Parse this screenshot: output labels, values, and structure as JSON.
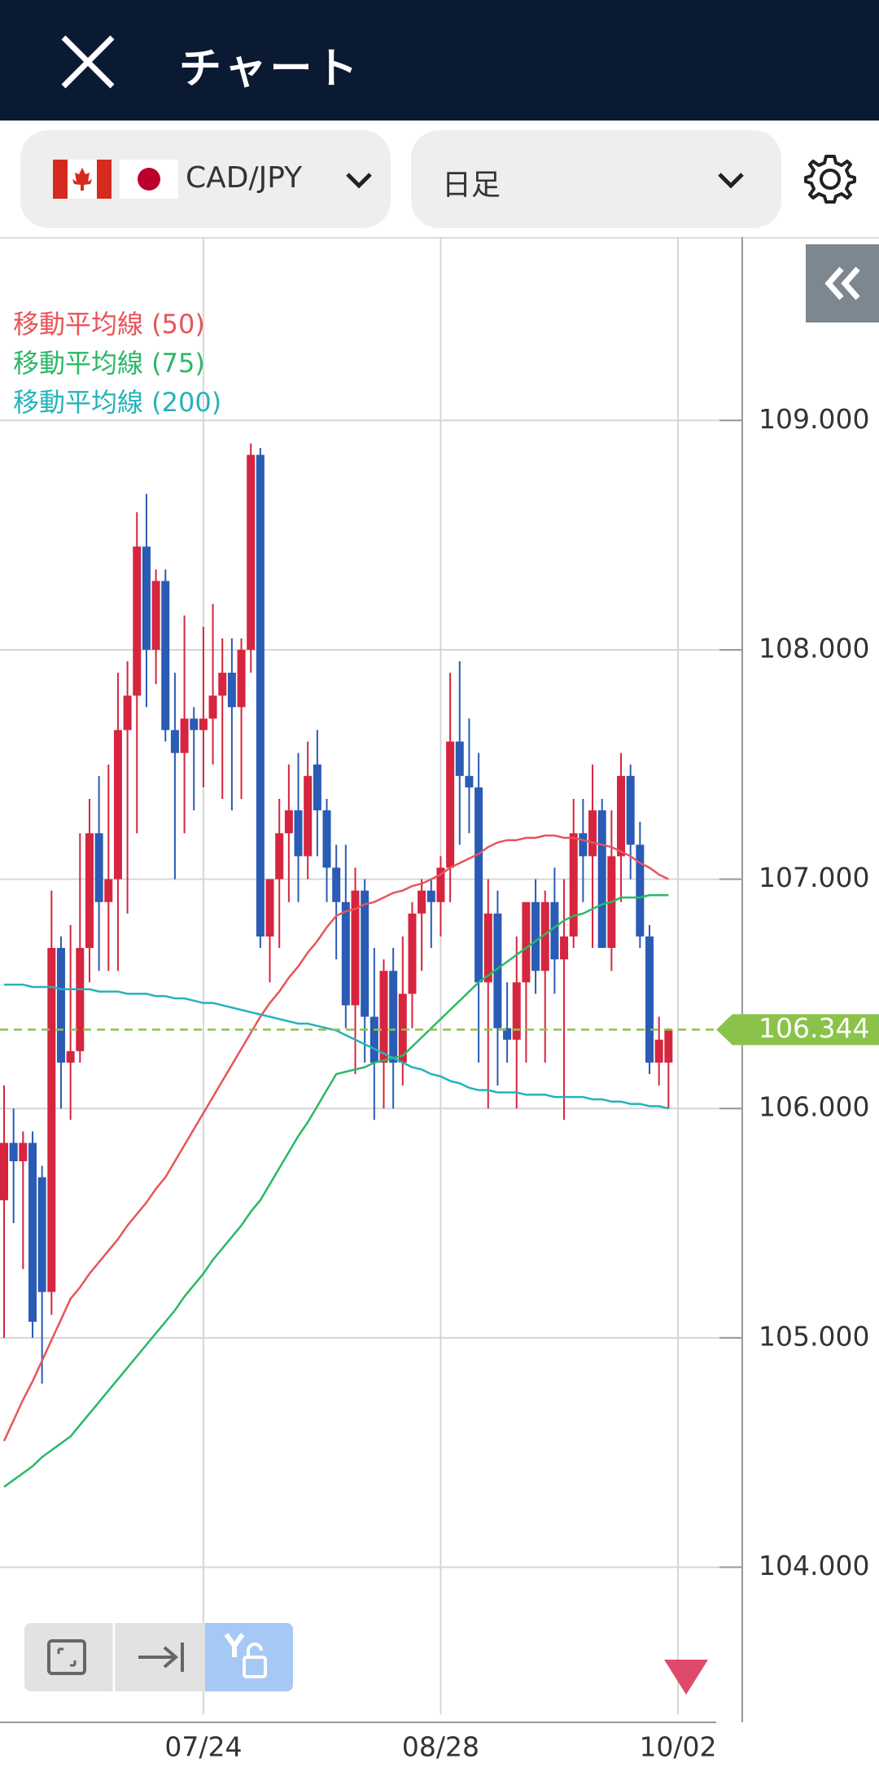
{
  "header": {
    "title": "チャート"
  },
  "controls": {
    "pair": "CAD/JPY",
    "timeframe": "日足"
  },
  "chart_data": {
    "type": "candlestick",
    "categories": [
      null,
      null,
      null,
      null,
      null,
      null,
      null,
      null,
      null,
      null,
      null,
      null,
      null,
      null,
      null,
      null,
      null,
      null,
      null,
      null,
      null,
      "07/24",
      null,
      null,
      null,
      null,
      null,
      null,
      null,
      null,
      null,
      null,
      null,
      null,
      null,
      null,
      null,
      null,
      null,
      null,
      null,
      null,
      null,
      null,
      null,
      null,
      "08/28",
      null,
      null,
      null,
      null,
      null,
      null,
      null,
      null,
      null,
      null,
      null,
      null,
      null,
      null,
      null,
      null,
      null,
      null,
      null,
      null,
      null,
      null,
      null,
      null,
      "10/02"
    ],
    "up_color": "#d6253e",
    "down_color": "#2a5bb5",
    "ohlc": [
      [
        105.6,
        106.1,
        105.0,
        105.85
      ],
      [
        105.85,
        106.0,
        105.5,
        105.77
      ],
      [
        105.77,
        105.9,
        105.3,
        105.85
      ],
      [
        105.85,
        105.9,
        105.0,
        105.07
      ],
      [
        105.7,
        105.75,
        104.8,
        105.2
      ],
      [
        105.2,
        106.95,
        105.1,
        106.7
      ],
      [
        106.7,
        106.75,
        106.0,
        106.2
      ],
      [
        106.2,
        106.8,
        105.95,
        106.25
      ],
      [
        106.25,
        107.2,
        106.2,
        106.7
      ],
      [
        106.7,
        107.35,
        106.55,
        107.2
      ],
      [
        107.2,
        107.45,
        106.6,
        106.9
      ],
      [
        106.9,
        107.5,
        106.6,
        107.0
      ],
      [
        107.0,
        107.9,
        106.6,
        107.65
      ],
      [
        107.65,
        107.95,
        106.85,
        107.8
      ],
      [
        107.8,
        108.6,
        107.2,
        108.45
      ],
      [
        108.45,
        108.68,
        107.75,
        108.0
      ],
      [
        108.0,
        108.35,
        107.85,
        108.3
      ],
      [
        108.3,
        108.35,
        107.6,
        107.65
      ],
      [
        107.65,
        107.9,
        107.0,
        107.55
      ],
      [
        107.55,
        108.15,
        107.2,
        107.7
      ],
      [
        107.7,
        107.75,
        107.3,
        107.65
      ],
      [
        107.65,
        108.1,
        107.4,
        107.7
      ],
      [
        107.7,
        108.2,
        107.5,
        107.8
      ],
      [
        107.8,
        108.05,
        107.35,
        107.9
      ],
      [
        107.9,
        108.05,
        107.3,
        107.75
      ],
      [
        107.75,
        108.05,
        107.35,
        108.0
      ],
      [
        108.0,
        108.9,
        107.9,
        108.85
      ],
      [
        108.85,
        108.88,
        106.7,
        106.75
      ],
      [
        106.75,
        107.0,
        106.55,
        107.0
      ],
      [
        107.0,
        107.35,
        106.7,
        107.2
      ],
      [
        107.2,
        107.5,
        106.9,
        107.3
      ],
      [
        107.3,
        107.55,
        106.9,
        107.1
      ],
      [
        107.1,
        107.6,
        107.0,
        107.45
      ],
      [
        107.5,
        107.65,
        107.1,
        107.3
      ],
      [
        107.3,
        107.35,
        106.9,
        107.05
      ],
      [
        107.05,
        107.15,
        106.65,
        106.9
      ],
      [
        106.9,
        107.15,
        106.35,
        106.45
      ],
      [
        106.45,
        107.05,
        106.15,
        106.95
      ],
      [
        106.95,
        107.0,
        106.2,
        106.4
      ],
      [
        106.4,
        106.7,
        105.95,
        106.2
      ],
      [
        106.2,
        106.65,
        106.0,
        106.6
      ],
      [
        106.6,
        106.7,
        106.0,
        106.2
      ],
      [
        106.2,
        106.75,
        106.1,
        106.5
      ],
      [
        106.5,
        106.9,
        106.35,
        106.85
      ],
      [
        106.85,
        107.0,
        106.6,
        106.95
      ],
      [
        106.95,
        107.0,
        106.7,
        106.9
      ],
      [
        106.9,
        107.1,
        106.75,
        107.05
      ],
      [
        107.05,
        107.9,
        106.9,
        107.6
      ],
      [
        107.6,
        107.95,
        107.15,
        107.45
      ],
      [
        107.45,
        107.7,
        107.2,
        107.4
      ],
      [
        107.4,
        107.55,
        106.2,
        106.55
      ],
      [
        106.55,
        107.0,
        106.0,
        106.85
      ],
      [
        106.85,
        106.95,
        106.1,
        106.35
      ],
      [
        106.35,
        106.55,
        106.2,
        106.3
      ],
      [
        106.3,
        106.75,
        106.0,
        106.55
      ],
      [
        106.55,
        106.8,
        106.2,
        106.9
      ],
      [
        106.9,
        107.0,
        106.5,
        106.6
      ],
      [
        106.6,
        106.95,
        106.2,
        106.9
      ],
      [
        106.9,
        107.05,
        106.5,
        106.65
      ],
      [
        106.65,
        107.0,
        105.95,
        106.75
      ],
      [
        106.75,
        107.35,
        106.7,
        107.2
      ],
      [
        107.2,
        107.35,
        106.9,
        107.1
      ],
      [
        107.1,
        107.5,
        106.7,
        107.3
      ],
      [
        107.3,
        107.35,
        106.7,
        106.7
      ],
      [
        106.7,
        107.3,
        106.6,
        107.1
      ],
      [
        107.1,
        107.55,
        106.9,
        107.45
      ],
      [
        107.45,
        107.5,
        107.0,
        107.15
      ],
      [
        107.15,
        107.25,
        106.7,
        106.75
      ],
      [
        106.75,
        106.8,
        106.15,
        106.2
      ],
      [
        106.2,
        106.4,
        106.1,
        106.3
      ],
      [
        106.2,
        106.35,
        106.0,
        106.344
      ],
      null
    ],
    "series": [
      {
        "name": "移動平均線 (50)",
        "color": "#e8545a",
        "values": [
          104.55,
          104.64,
          104.73,
          104.81,
          104.9,
          104.99,
          105.08,
          105.17,
          105.22,
          105.28,
          105.33,
          105.38,
          105.43,
          105.49,
          105.54,
          105.59,
          105.65,
          105.7,
          105.77,
          105.84,
          105.91,
          105.98,
          106.05,
          106.12,
          106.19,
          106.26,
          106.33,
          106.4,
          106.46,
          106.51,
          106.57,
          106.62,
          106.68,
          106.73,
          106.79,
          106.84,
          106.86,
          106.87,
          106.89,
          106.9,
          106.92,
          106.94,
          106.95,
          106.97,
          106.98,
          107.0,
          107.02,
          107.05,
          107.07,
          107.09,
          107.11,
          107.14,
          107.16,
          107.17,
          107.17,
          107.18,
          107.18,
          107.19,
          107.19,
          107.18,
          107.18,
          107.17,
          107.16,
          107.15,
          107.14,
          107.12,
          107.1,
          107.07,
          107.05,
          107.02,
          107.0,
          null
        ]
      },
      {
        "name": "移動平均線 (75)",
        "color": "#2bb866",
        "values": [
          104.35,
          104.38,
          104.41,
          104.44,
          104.48,
          104.51,
          104.54,
          104.57,
          104.62,
          104.67,
          104.72,
          104.77,
          104.82,
          104.87,
          104.92,
          104.97,
          105.02,
          105.07,
          105.12,
          105.18,
          105.23,
          105.28,
          105.34,
          105.39,
          105.44,
          105.49,
          105.55,
          105.6,
          105.67,
          105.74,
          105.81,
          105.88,
          105.94,
          106.01,
          106.08,
          106.15,
          106.16,
          106.17,
          106.18,
          106.2,
          106.21,
          106.22,
          106.23,
          106.27,
          106.31,
          106.35,
          106.39,
          106.43,
          106.47,
          106.51,
          106.55,
          106.58,
          106.61,
          106.64,
          106.67,
          106.7,
          106.73,
          106.76,
          106.79,
          106.82,
          106.84,
          106.85,
          106.87,
          106.89,
          106.9,
          106.92,
          106.92,
          106.92,
          106.93,
          106.93,
          106.93,
          null
        ]
      },
      {
        "name": "移動平均線 (200)",
        "color": "#26b3b8",
        "values": [
          106.54,
          106.54,
          106.54,
          106.53,
          106.53,
          106.53,
          106.52,
          106.52,
          106.52,
          106.52,
          106.51,
          106.51,
          106.51,
          106.5,
          106.5,
          106.5,
          106.49,
          106.49,
          106.48,
          106.48,
          106.47,
          106.46,
          106.46,
          106.45,
          106.44,
          106.43,
          106.42,
          106.41,
          106.4,
          106.39,
          106.38,
          106.37,
          106.37,
          106.36,
          106.35,
          106.34,
          106.32,
          106.3,
          106.28,
          106.26,
          106.24,
          106.22,
          106.2,
          106.18,
          106.17,
          106.15,
          106.14,
          106.12,
          106.11,
          106.09,
          106.08,
          106.08,
          106.07,
          106.07,
          106.07,
          106.06,
          106.06,
          106.06,
          106.05,
          106.05,
          106.05,
          106.05,
          106.04,
          106.04,
          106.03,
          106.03,
          106.02,
          106.02,
          106.01,
          106.01,
          106.0,
          null
        ]
      }
    ],
    "current_price": 106.344,
    "current_price_color": "#8bc34a",
    "ylim": [
      103.43,
      109.8
    ],
    "yticks": [
      {
        "value": 104,
        "label": "104.000"
      },
      {
        "value": 105,
        "label": "105.000"
      },
      {
        "value": 106,
        "label": "106.000"
      },
      {
        "value": 107,
        "label": "107.000"
      },
      {
        "value": 108,
        "label": "108.000"
      },
      {
        "value": 109,
        "label": "109.000"
      }
    ],
    "grid": true
  }
}
